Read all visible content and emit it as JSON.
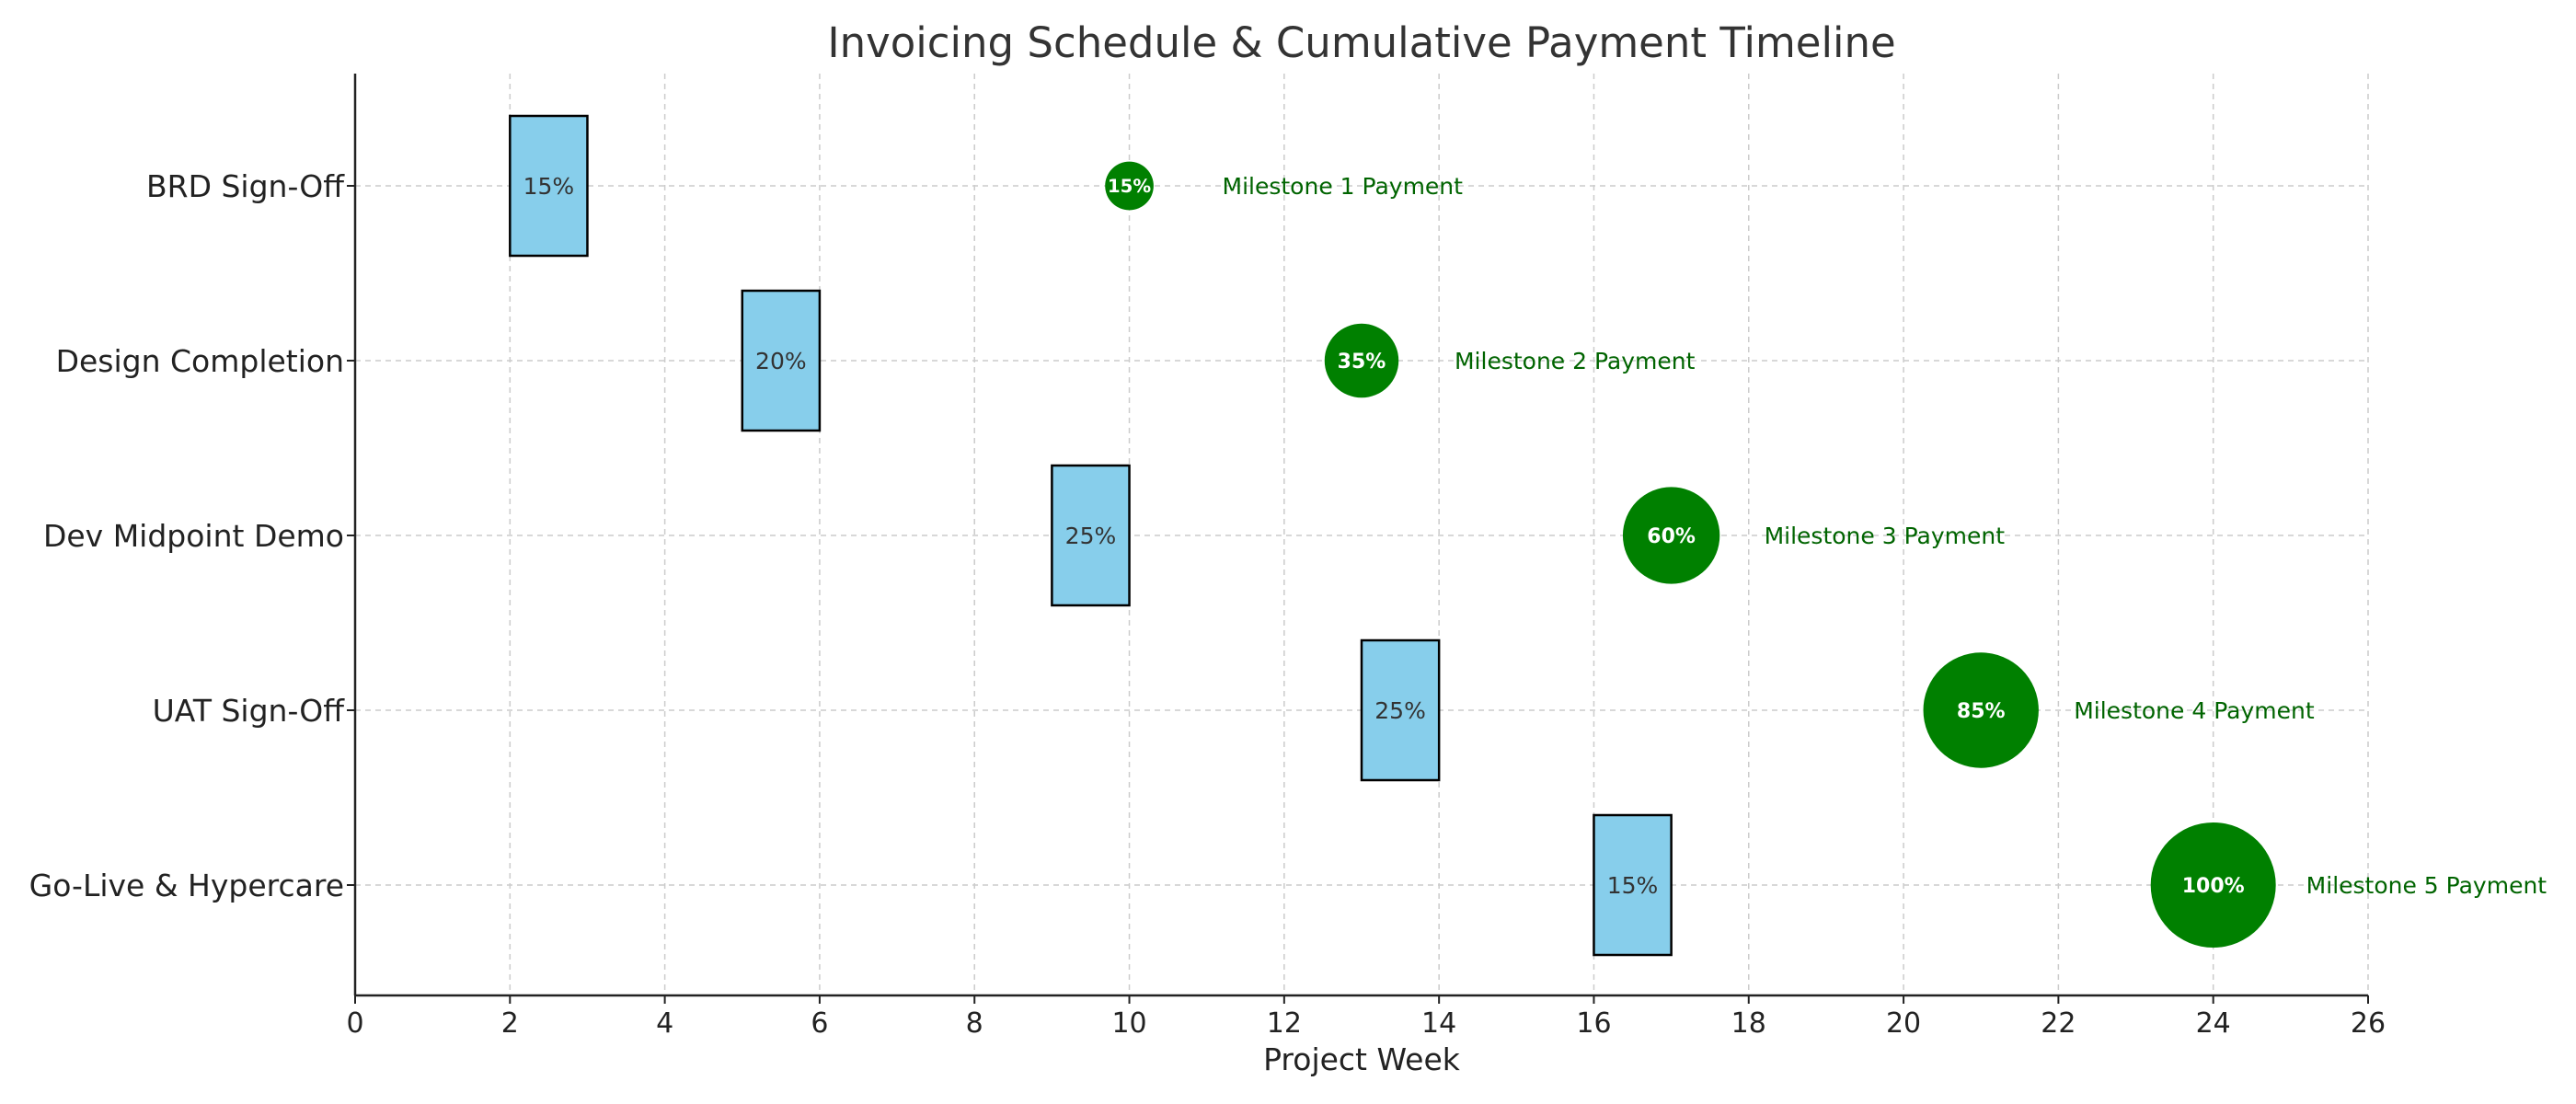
{
  "chart_data": {
    "type": "bar",
    "title": "Invoicing Schedule & Cumulative Payment Timeline",
    "xlabel": "Project Week",
    "ylabel": "",
    "xlim": [
      0,
      26
    ],
    "xticks": [
      "0",
      "2",
      "4",
      "6",
      "8",
      "10",
      "12",
      "14",
      "16",
      "18",
      "20",
      "22",
      "24",
      "26"
    ],
    "grid": true,
    "categories": [
      "BRD Sign-Off",
      "Design Completion",
      "Dev Midpoint Demo",
      "UAT Sign-Off",
      "Go-Live & Hypercare"
    ],
    "invoice_bars": [
      {
        "start": 2,
        "end": 3,
        "label": "15%"
      },
      {
        "start": 5,
        "end": 6,
        "label": "20%"
      },
      {
        "start": 9,
        "end": 10,
        "label": "25%"
      },
      {
        "start": 13,
        "end": 14,
        "label": "25%"
      },
      {
        "start": 16,
        "end": 17,
        "label": "15%"
      }
    ],
    "payments": [
      {
        "week": 10,
        "cumulative_percent": 15,
        "label": "15%",
        "name": "Milestone 1 Payment"
      },
      {
        "week": 13,
        "cumulative_percent": 35,
        "label": "35%",
        "name": "Milestone 2 Payment"
      },
      {
        "week": 17,
        "cumulative_percent": 60,
        "label": "60%",
        "name": "Milestone 3 Payment"
      },
      {
        "week": 21,
        "cumulative_percent": 85,
        "label": "85%",
        "name": "Milestone 4 Payment"
      },
      {
        "week": 24,
        "cumulative_percent": 100,
        "label": "100%",
        "name": "Milestone 5 Payment"
      }
    ],
    "colors": {
      "bar_fill": "#87ceeb",
      "bar_edge": "#000000",
      "bubble": "#008000",
      "payment_text": "#006400"
    }
  }
}
